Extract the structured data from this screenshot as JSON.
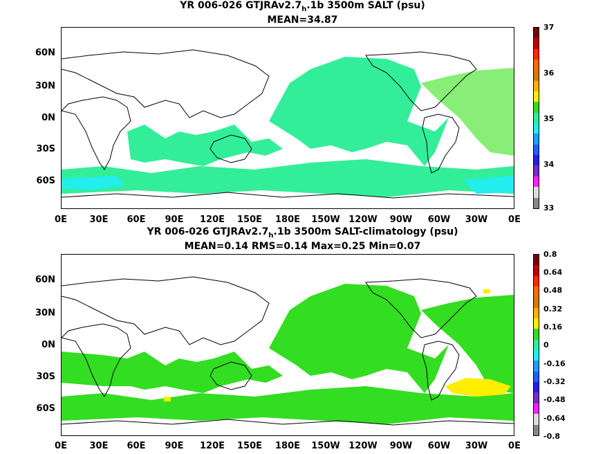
{
  "panel1": {
    "title_main": "YR 006-026 GTJRAv2.7",
    "title_sub": "h",
    "title_rest": ".1b 3500m SALT (psu)",
    "stats": "MEAN=34.87",
    "y_labels": [
      "60N",
      "30N",
      "0N",
      "30S",
      "60S"
    ],
    "x_labels": [
      "0E",
      "30E",
      "60E",
      "90E",
      "120E",
      "150E",
      "180E",
      "150W",
      "120W",
      "90W",
      "60W",
      "30W",
      "0E"
    ],
    "colorbar_labels": [
      "37",
      "36",
      "35",
      "34",
      "33"
    ]
  },
  "panel2": {
    "title_main": "YR 006-026 GTJRAv2.7",
    "title_sub": "h",
    "title_rest": ".1b 3500m SALT-climatology (psu)",
    "stats": "MEAN=0.14   RMS=0.14   Max=0.25   Min=0.07",
    "y_labels": [
      "60N",
      "30N",
      "0N",
      "30S",
      "60S"
    ],
    "x_labels": [
      "0E",
      "30E",
      "60E",
      "90E",
      "120E",
      "150E",
      "180E",
      "150W",
      "120W",
      "90W",
      "60W",
      "30W",
      "0E"
    ],
    "colorbar_labels": [
      "0.8",
      "0.64",
      "0.48",
      "0.32",
      "0.16",
      "0",
      "-0.16",
      "-0.32",
      "-0.48",
      "-0.64",
      "-0.8"
    ]
  },
  "colors": {
    "ocean_top": "#33ee99",
    "atlantic_top": "#88ee77",
    "southern_cyan": "#22eeee",
    "ocean_bottom": "#33dd22",
    "yellow_anom": "#ffee00",
    "land": "#ffffff",
    "coast": "#000000"
  },
  "colorbar1_colors": [
    "#7a0000",
    "#c00000",
    "#ff2a00",
    "#ff6a00",
    "#d87a00",
    "#ffb000",
    "#ffee00",
    "#33dd22",
    "#33ee99",
    "#22eeee",
    "#1aa0ff",
    "#1f5fff",
    "#2222dd",
    "#7a2acc",
    "#ff22ff",
    "#dddddd",
    "#888888"
  ],
  "colorbar2_colors": [
    "#7a0000",
    "#c00000",
    "#ff2a00",
    "#ff6a00",
    "#d87a00",
    "#ffb000",
    "#ffee00",
    "#33dd22",
    "#33ee99",
    "#22eeee",
    "#1aa0ff",
    "#1f5fff",
    "#2222dd",
    "#7a2acc",
    "#ff22ff",
    "#dddddd",
    "#888888"
  ]
}
